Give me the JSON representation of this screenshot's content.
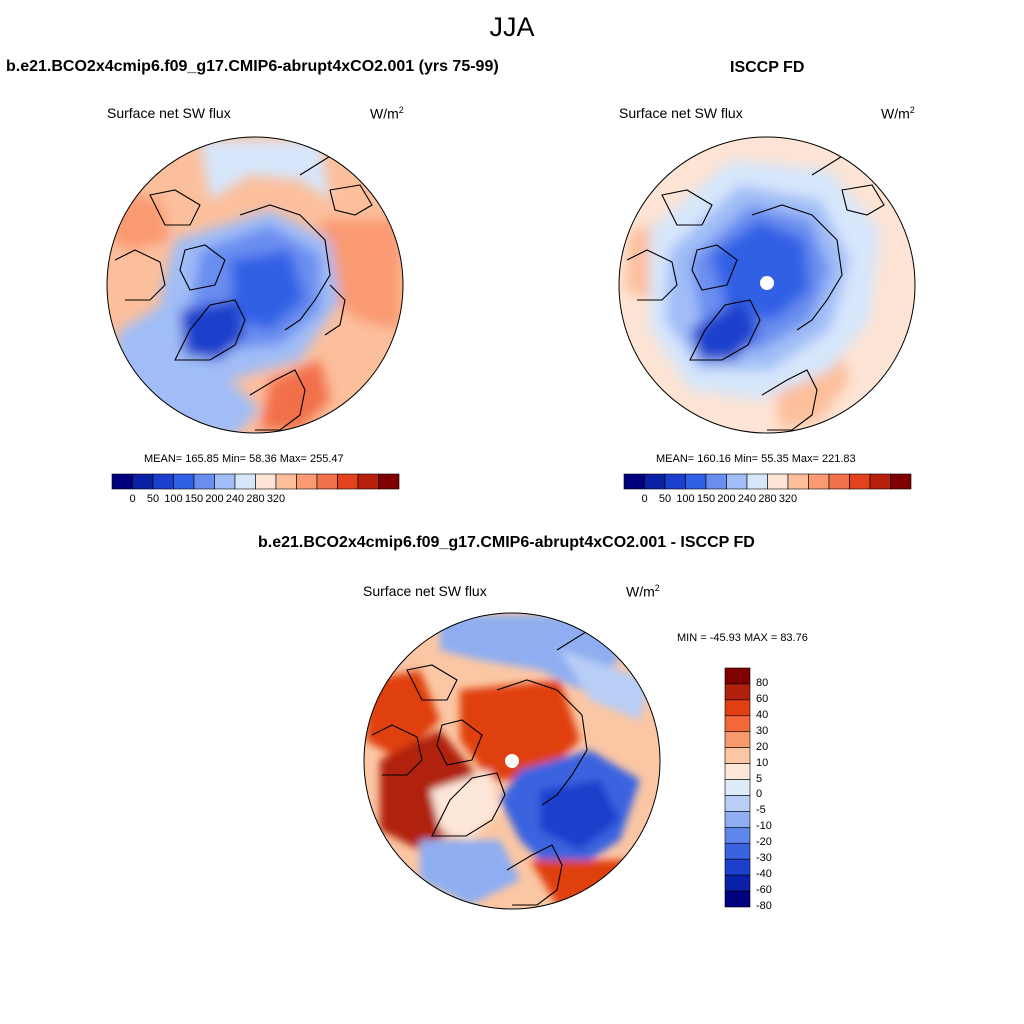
{
  "title": "JJA",
  "panels": [
    {
      "id": "model",
      "title": "b.e21.BCO2x4cmip6.f09_g17.CMIP6-abrupt4xCO2.001 (yrs 75-99)",
      "field": "Surface net SW flux",
      "units_base": "W/m",
      "units_exp": "2",
      "stats": "MEAN= 165.85  Min=  58.36  Max= 255.47",
      "colorbar_ticks": [
        "0",
        "50",
        "100",
        "150",
        "200",
        "240",
        "280",
        "320"
      ]
    },
    {
      "id": "obs",
      "title": "ISCCP FD",
      "field": "Surface net SW flux",
      "units_base": "W/m",
      "units_exp": "2",
      "stats": "MEAN= 160.16  Min=  55.35  Max= 221.83",
      "colorbar_ticks": [
        "0",
        "50",
        "100",
        "150",
        "200",
        "240",
        "280",
        "320"
      ]
    },
    {
      "id": "diff",
      "title": "b.e21.BCO2x4cmip6.f09_g17.CMIP6-abrupt4xCO2.001 - ISCCP FD",
      "field": "Surface net SW flux",
      "units_base": "W/m",
      "units_exp": "2",
      "stats": "MIN = -45.93 MAX =  83.76",
      "colorbar_ticks": [
        "80",
        "60",
        "40",
        "30",
        "20",
        "10",
        "5",
        "0",
        "-5",
        "-10",
        "-20",
        "-30",
        "-40",
        "-60",
        "-80"
      ]
    }
  ],
  "colormaps": {
    "abs": [
      "#00007f",
      "#0a1fa6",
      "#1a3fcc",
      "#3060e5",
      "#6a8ef0",
      "#a0bdf7",
      "#d6e6fb",
      "#fde4d4",
      "#fcbf9c",
      "#f99a72",
      "#f2704a",
      "#e2431c",
      "#b7200c",
      "#7f0000"
    ],
    "diff": [
      "#800000",
      "#b0200a",
      "#e0400f",
      "#f2683a",
      "#f8996d",
      "#fbc6a4",
      "#fde7d8",
      "#e0ebfa",
      "#b8cef6",
      "#8eaef1",
      "#5f86ea",
      "#3a63e0",
      "#1c3fcc",
      "#0b20a8",
      "#000080"
    ]
  }
}
